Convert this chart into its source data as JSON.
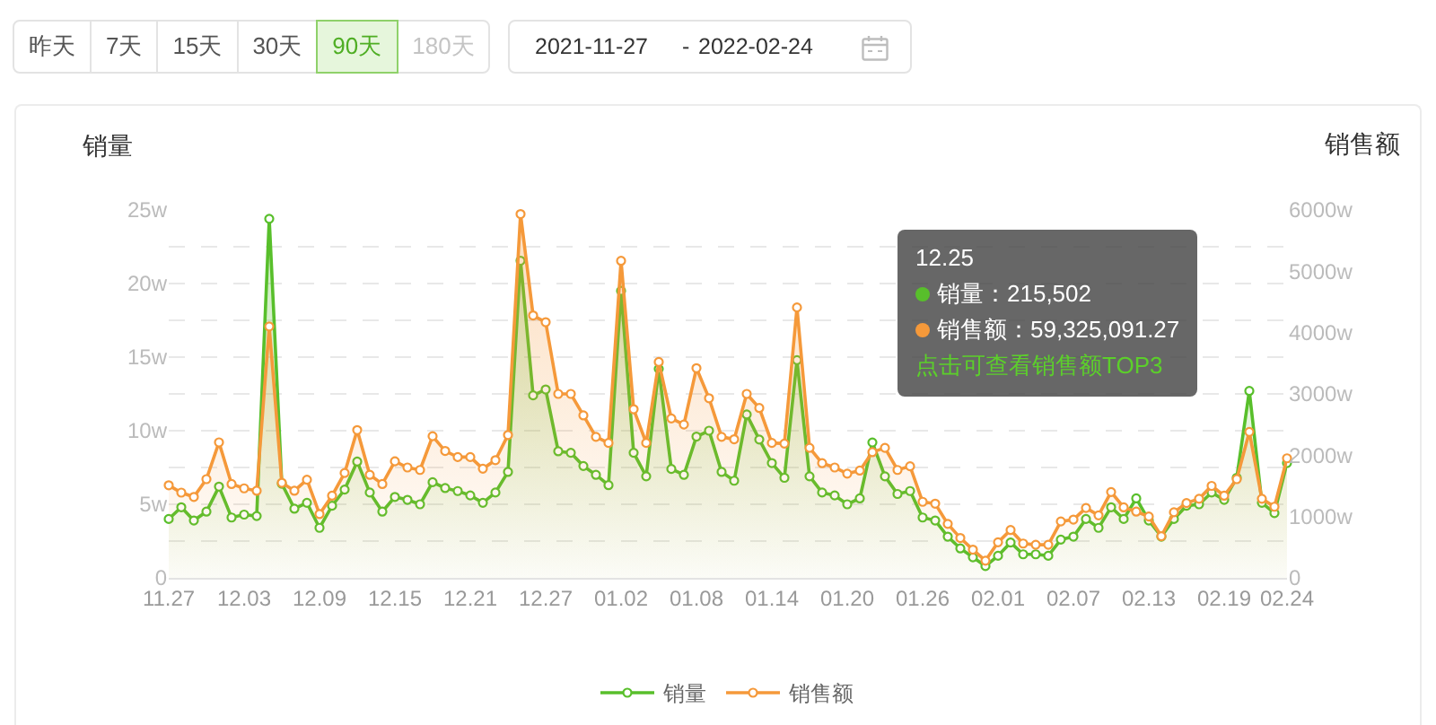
{
  "chart_data": {
    "type": "area",
    "categories": [
      "11.27",
      null,
      null,
      null,
      null,
      null,
      "12.03",
      null,
      null,
      null,
      null,
      null,
      "12.09",
      null,
      null,
      null,
      null,
      null,
      "12.15",
      null,
      null,
      null,
      null,
      null,
      "12.21",
      null,
      null,
      null,
      null,
      null,
      "12.27",
      null,
      null,
      null,
      null,
      null,
      "01.02",
      null,
      null,
      null,
      null,
      null,
      "01.08",
      null,
      null,
      null,
      null,
      null,
      "01.14",
      null,
      null,
      null,
      null,
      null,
      "01.20",
      null,
      null,
      null,
      null,
      null,
      "01.26",
      null,
      null,
      null,
      null,
      null,
      "02.01",
      null,
      null,
      null,
      null,
      null,
      "02.07",
      null,
      null,
      null,
      null,
      null,
      "02.13",
      null,
      null,
      null,
      null,
      null,
      "02.19",
      null,
      null,
      null,
      null,
      "02.24"
    ],
    "series": [
      {
        "name": "销量",
        "color": "#58bf2b",
        "values": [
          4.0,
          4.8,
          3.9,
          4.5,
          6.2,
          4.1,
          4.3,
          4.2,
          24.4,
          6.4,
          4.7,
          5.1,
          3.4,
          4.9,
          6.0,
          7.9,
          5.8,
          4.5,
          5.5,
          5.3,
          5.0,
          6.5,
          6.1,
          5.9,
          5.6,
          5.1,
          5.8,
          7.2,
          21.55,
          12.4,
          12.8,
          8.6,
          8.5,
          7.6,
          7.0,
          6.3,
          19.5,
          8.5,
          6.9,
          14.2,
          7.4,
          7.0,
          9.6,
          10.0,
          7.2,
          6.6,
          11.1,
          9.4,
          7.8,
          6.8,
          14.8,
          6.9,
          5.8,
          5.6,
          5.0,
          5.4,
          9.2,
          6.9,
          5.7,
          5.9,
          4.1,
          3.9,
          2.8,
          2.0,
          1.4,
          0.8,
          1.5,
          2.4,
          1.6,
          1.6,
          1.5,
          2.6,
          2.8,
          4.0,
          3.4,
          4.8,
          4.0,
          5.4,
          3.9,
          2.8,
          4.0,
          4.9,
          5.0,
          5.8,
          5.3,
          6.8,
          12.7,
          5.1,
          4.4,
          7.8
        ]
      },
      {
        "name": "销售额",
        "color": "#f5993a",
        "axis": "y2",
        "values": [
          1510,
          1390,
          1320,
          1610,
          2210,
          1530,
          1460,
          1420,
          4100,
          1550,
          1420,
          1600,
          1040,
          1340,
          1710,
          2410,
          1680,
          1530,
          1900,
          1800,
          1760,
          2310,
          2070,
          1970,
          1970,
          1780,
          1920,
          2330,
          5933,
          4280,
          4170,
          3000,
          3000,
          2650,
          2300,
          2200,
          5170,
          2750,
          2200,
          3520,
          2600,
          2500,
          3420,
          2930,
          2300,
          2260,
          3000,
          2770,
          2200,
          2190,
          4410,
          2120,
          1870,
          1800,
          1700,
          1750,
          2050,
          2120,
          1760,
          1820,
          1240,
          1210,
          880,
          650,
          460,
          280,
          580,
          780,
          560,
          540,
          540,
          920,
          950,
          1140,
          1020,
          1400,
          1150,
          1080,
          1000,
          680,
          1070,
          1220,
          1290,
          1500,
          1340,
          1610,
          2380,
          1290,
          1160,
          1950
        ]
      }
    ],
    "ylabel": "销量",
    "y2label": "销售额",
    "ylim": [
      0,
      25
    ],
    "yticks": [
      0,
      {
        "value": 2.5,
        "label": null
      },
      {
        "value": 5,
        "label": "5w"
      },
      {
        "value": 7.5,
        "label": null
      },
      {
        "value": 10,
        "label": "10w"
      },
      {
        "value": 12.5,
        "label": null
      },
      {
        "value": 15,
        "label": "15w"
      },
      {
        "value": 17.5,
        "label": null
      },
      {
        "value": 20,
        "label": "20w"
      },
      {
        "value": 22.5,
        "label": null
      },
      {
        "value": 25,
        "label": "25w"
      }
    ],
    "y2lim": [
      0,
      6000
    ],
    "y2ticks": [
      0,
      {
        "value": 1000,
        "label": "1000w"
      },
      {
        "value": 2000,
        "label": "2000w"
      },
      {
        "value": 3000,
        "label": "3000w"
      },
      {
        "value": 4000,
        "label": "4000w"
      },
      {
        "value": 5000,
        "label": "5000w"
      },
      {
        "value": 6000,
        "label": "6000w"
      }
    ],
    "grid": "y",
    "legend": "bottom",
    "marker": "circle",
    "annotations": [
      "昨天",
      "7天",
      "15天",
      "30天",
      "90天",
      "180天",
      "2021-11-27",
      "-",
      "2022-02-24",
      "12.25",
      "销量：215,502",
      "销售额：59,325,091.27",
      "点击可查看销售额TOP3"
    ]
  }
}
